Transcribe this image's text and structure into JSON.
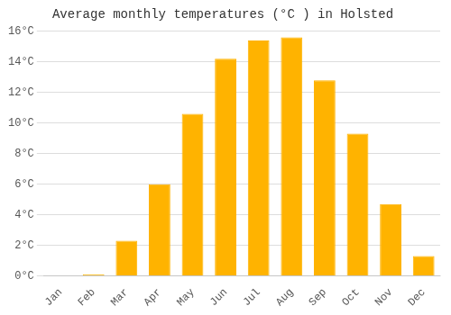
{
  "chart_data": {
    "type": "bar",
    "title": "Average monthly temperatures (°C ) in Holsted",
    "categories": [
      "Jan",
      "Feb",
      "Mar",
      "Apr",
      "May",
      "Jun",
      "Jul",
      "Aug",
      "Sep",
      "Oct",
      "Nov",
      "Dec"
    ],
    "values": [
      0.0,
      0.1,
      2.3,
      6.0,
      10.6,
      14.2,
      15.4,
      15.6,
      12.8,
      9.3,
      4.7,
      1.3
    ],
    "color": "#FFB300",
    "ylim": [
      0,
      16
    ],
    "yticks": [
      {
        "value": 0,
        "label": "0°C"
      },
      {
        "value": 2,
        "label": "2°C"
      },
      {
        "value": 4,
        "label": "4°C"
      },
      {
        "value": 6,
        "label": "6°C"
      },
      {
        "value": 8,
        "label": "8°C"
      },
      {
        "value": 10,
        "label": "10°C"
      },
      {
        "value": 12,
        "label": "12°C"
      },
      {
        "value": 14,
        "label": "14°C"
      },
      {
        "value": 16,
        "label": "16°C"
      }
    ],
    "grid": true
  }
}
